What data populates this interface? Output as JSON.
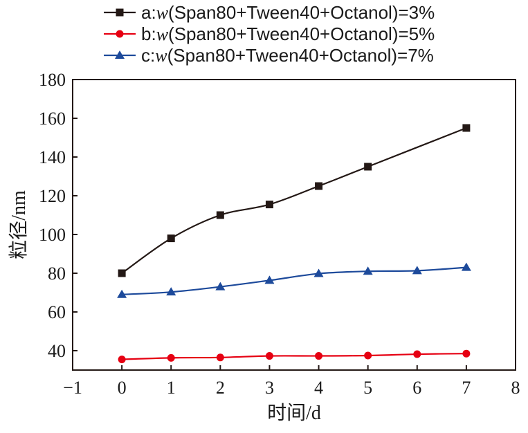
{
  "chart_data": {
    "type": "line",
    "title": "",
    "xlabel": "时间/d",
    "ylabel": "粒径/nm",
    "xlim": [
      -1,
      8
    ],
    "ylim": [
      30,
      180
    ],
    "x_ticks": [
      -1,
      0,
      1,
      2,
      3,
      4,
      5,
      6,
      7,
      8
    ],
    "x_tick_labels": [
      "−1",
      "0",
      "1",
      "2",
      "3",
      "4",
      "5",
      "6",
      "7",
      "8"
    ],
    "y_ticks": [
      40,
      60,
      80,
      100,
      120,
      140,
      160,
      180
    ],
    "y_tick_labels": [
      "40",
      "60",
      "80",
      "100",
      "120",
      "140",
      "160",
      "180"
    ],
    "grid": false,
    "legend_position": "top",
    "series": [
      {
        "prefix": "a:",
        "italic": "w",
        "rest": "(Span80+Tween40+Octanol)=3%",
        "color": "#231815",
        "marker": "square",
        "x": [
          0,
          1,
          2,
          3,
          5,
          7,
          4
        ],
        "values": [
          80,
          98,
          110,
          115.5,
          135,
          155,
          125
        ]
      },
      {
        "prefix": "b:",
        "italic": "w",
        "rest": "(Span80+Tween40+Octanol)=5%",
        "color": "#e60012",
        "marker": "circle",
        "x": [
          0,
          1,
          2,
          3,
          4,
          5,
          6,
          7
        ],
        "values": [
          35.5,
          36.3,
          36.5,
          37.3,
          37.3,
          37.5,
          38.2,
          38.5
        ]
      },
      {
        "prefix": "c:",
        "italic": "w",
        "rest": "(Span80+Tween40+Octanol)=7%",
        "color": "#1d4a9b",
        "marker": "triangle",
        "x": [
          0,
          1,
          2,
          3,
          4,
          5,
          6,
          7
        ],
        "values": [
          69,
          70.3,
          73,
          76.3,
          79.8,
          81,
          81.3,
          83
        ]
      }
    ]
  }
}
